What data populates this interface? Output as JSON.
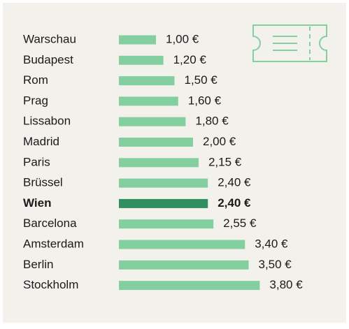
{
  "chart_data": {
    "type": "bar",
    "orientation": "horizontal",
    "categories": [
      "Warschau",
      "Budapest",
      "Rom",
      "Prag",
      "Lissabon",
      "Madrid",
      "Paris",
      "Brüssel",
      "Wien",
      "Barcelona",
      "Amsterdam",
      "Berlin",
      "Stockholm"
    ],
    "values": [
      1.0,
      1.2,
      1.5,
      1.6,
      1.8,
      2.0,
      2.15,
      2.4,
      2.4,
      2.55,
      3.4,
      3.5,
      3.8
    ],
    "value_labels": [
      "1,00 €",
      "1,20 €",
      "1,50 €",
      "1,60 €",
      "1,80 €",
      "2,00 €",
      "2,15 €",
      "2,40 €",
      "2,40 €",
      "2,55 €",
      "3,40 €",
      "3,50 €",
      "3,80 €"
    ],
    "color": "#84cfa0",
    "highlight_index": 8,
    "highlight_color": "#2f8f60"
  }
}
